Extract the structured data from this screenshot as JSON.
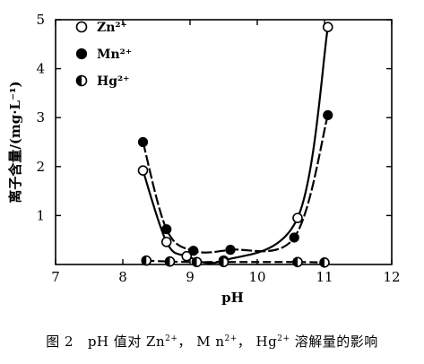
{
  "chart_data": {
    "type": "scatter",
    "title": "",
    "xlabel": "pH",
    "ylabel": "离子含量/(mg·L⁻¹)",
    "xlim": [
      7,
      12
    ],
    "ylim": [
      0,
      5
    ],
    "x_ticks": [
      "7",
      "8",
      "9",
      "10",
      "11",
      "12"
    ],
    "y_ticks": [
      "1",
      "2",
      "3",
      "4",
      "5"
    ],
    "grid": false,
    "legend_position": "top-left",
    "series": [
      {
        "name": "Zn²⁺",
        "marker": "open-circle",
        "color": "#000000",
        "x": [
          8.3,
          8.65,
          8.95,
          9.5,
          10.6,
          11.05
        ],
        "y": [
          1.92,
          0.46,
          0.17,
          0.08,
          0.95,
          4.85
        ]
      },
      {
        "name": "Mn²⁺",
        "marker": "filled-circle",
        "color": "#000000",
        "x": [
          8.3,
          8.65,
          9.05,
          9.6,
          10.55,
          11.05
        ],
        "y": [
          2.5,
          0.72,
          0.28,
          0.3,
          0.55,
          3.05
        ]
      },
      {
        "name": "Hg²⁺",
        "marker": "half-filled-circle",
        "color": "#000000",
        "x": [
          8.35,
          8.7,
          9.1,
          9.5,
          10.6,
          11.0
        ],
        "y": [
          0.08,
          0.06,
          0.05,
          0.05,
          0.05,
          0.04
        ]
      }
    ]
  },
  "caption": {
    "figure_label": "图 2",
    "text_before": "pH 值对 Zn",
    "zn_sup": "2+",
    "mid1": "， M n",
    "mn_sup": "2+",
    "mid2": "， Hg",
    "hg_sup": "2+",
    "text_after": " 溶解量的影响"
  }
}
